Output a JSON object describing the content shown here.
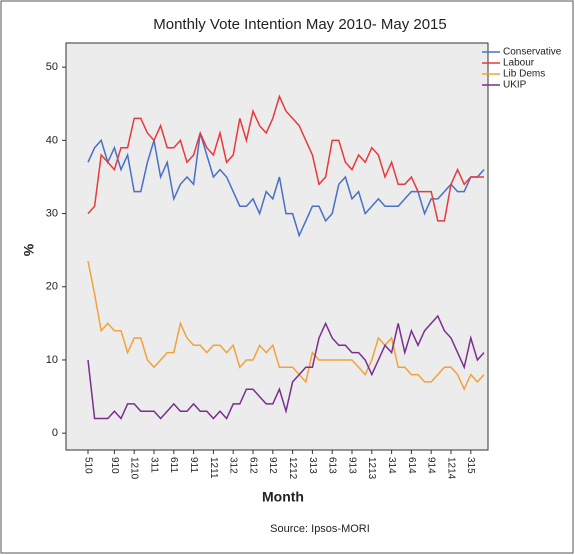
{
  "chart_data": {
    "type": "line",
    "title": "Monthly Vote Intention May 2010- May 2015",
    "x_label": "Month",
    "y_label": "%",
    "source": "Source: Ipsos-MORI",
    "categories": [
      "510",
      null,
      null,
      null,
      "910",
      null,
      null,
      "1210",
      null,
      null,
      "311",
      null,
      null,
      "611",
      null,
      null,
      "911",
      null,
      null,
      "1211",
      null,
      null,
      "312",
      null,
      null,
      "612",
      null,
      null,
      "912",
      null,
      null,
      "1212",
      null,
      null,
      "313",
      null,
      null,
      "613",
      null,
      null,
      "913",
      null,
      null,
      "1213",
      null,
      null,
      "314",
      null,
      null,
      "614",
      null,
      null,
      "914",
      null,
      null,
      "1214",
      null,
      null,
      "315",
      null,
      null
    ],
    "series": [
      {
        "name": "Conservative",
        "color": "#4a6fc7",
        "values": [
          37,
          39,
          40,
          37,
          39,
          36,
          38,
          33,
          33,
          37,
          40,
          35,
          37,
          32,
          34,
          35,
          34,
          41,
          38,
          35,
          36,
          35,
          33,
          31,
          31,
          32,
          30,
          33,
          32,
          35,
          30,
          30,
          27,
          29,
          31,
          31,
          29,
          30,
          34,
          35,
          32,
          33,
          30,
          31,
          32,
          31,
          31,
          31,
          32,
          33,
          33,
          30,
          32,
          32,
          33,
          34,
          33,
          33,
          35,
          35,
          36
        ]
      },
      {
        "name": "Labour",
        "color": "#e8393b",
        "values": [
          30,
          31,
          38,
          37,
          36,
          39,
          39,
          43,
          43,
          41,
          40,
          42,
          39,
          39,
          40,
          37,
          38,
          41,
          39,
          38,
          41,
          37,
          38,
          43,
          40,
          44,
          42,
          41,
          43,
          46,
          44,
          43,
          42,
          40,
          38,
          34,
          35,
          40,
          40,
          37,
          36,
          38,
          37,
          39,
          38,
          35,
          37,
          34,
          34,
          35,
          33,
          33,
          33,
          29,
          29,
          34,
          36,
          34,
          35,
          35,
          35
        ]
      },
      {
        "name": "Lib Dems",
        "color": "#f2a23a",
        "values": [
          23.5,
          19,
          14,
          15,
          14,
          14,
          11,
          13,
          13,
          10,
          9,
          10,
          11,
          11,
          15,
          13,
          12,
          12,
          11,
          12,
          12,
          11,
          12,
          9,
          10,
          10,
          12,
          11,
          12,
          9,
          9,
          9,
          8,
          7,
          11,
          10,
          10,
          10,
          10,
          10,
          10,
          9,
          8,
          10,
          13,
          12,
          13,
          9,
          9,
          8,
          8,
          7,
          7,
          8,
          9,
          9,
          8,
          6,
          8,
          7,
          8
        ]
      },
      {
        "name": "UKIP",
        "color": "#7b2e8f",
        "values": [
          10,
          2,
          2,
          2,
          3,
          2,
          4,
          4,
          3,
          3,
          3,
          2,
          3,
          4,
          3,
          3,
          4,
          3,
          3,
          2,
          3,
          2,
          4,
          4,
          6,
          6,
          5,
          4,
          4,
          6,
          3,
          7,
          8,
          9,
          9,
          13,
          15,
          13,
          12,
          12,
          11,
          11,
          10,
          8,
          10,
          12,
          11,
          15,
          11,
          14,
          12,
          14,
          15,
          16,
          14,
          13,
          11,
          9,
          13,
          10,
          11
        ]
      }
    ],
    "ylim": [
      -2.3,
      53.3
    ],
    "yticks": [
      0,
      10,
      20,
      30,
      40,
      50
    ],
    "grid": false,
    "legend": "top-right"
  }
}
